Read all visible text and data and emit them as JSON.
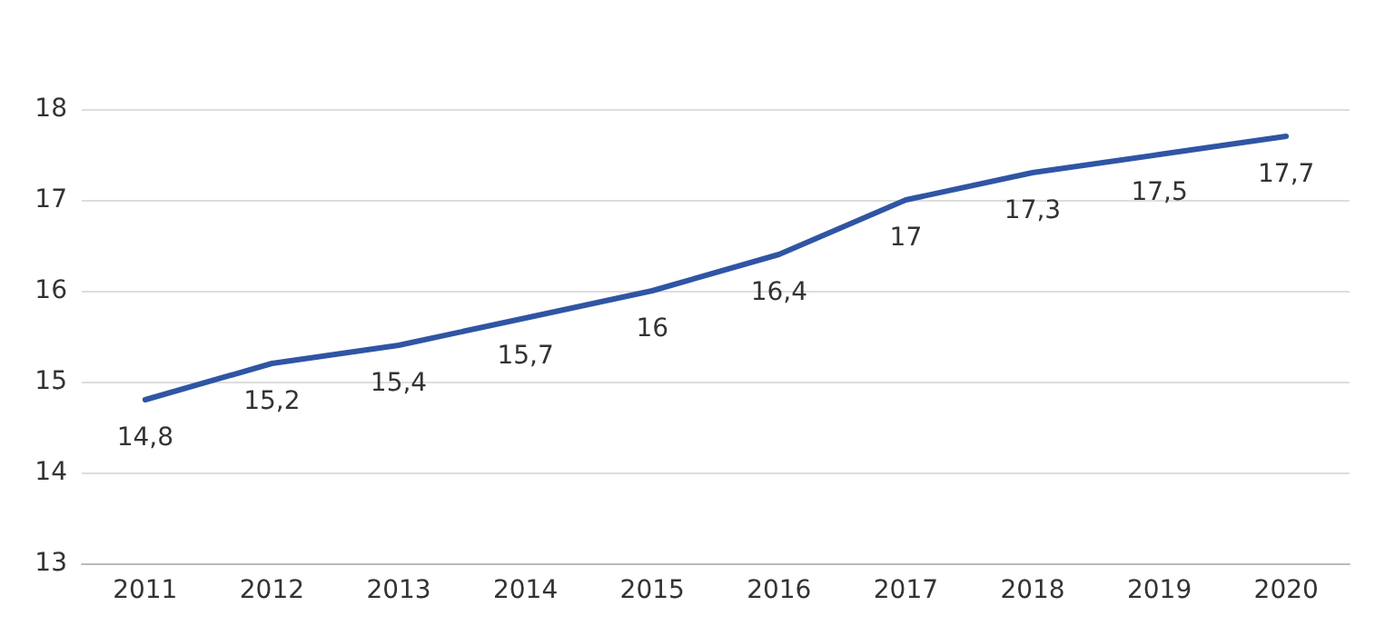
{
  "chart_data": {
    "type": "line",
    "categories": [
      "2011",
      "2012",
      "2013",
      "2014",
      "2015",
      "2016",
      "2017",
      "2018",
      "2019",
      "2020"
    ],
    "series": [
      {
        "color": "#2f55a4",
        "values": [
          14.8,
          15.2,
          15.4,
          15.7,
          16,
          16.4,
          17,
          17.3,
          17.5,
          17.7
        ],
        "value_labels": [
          "14,8",
          "15,2",
          "15,4",
          "15,7",
          "16",
          "16,4",
          "17",
          "17,3",
          "17,5",
          "17,7"
        ]
      }
    ],
    "ylim": [
      13,
      18
    ],
    "yticks": [
      13,
      14,
      15,
      16,
      17,
      18
    ],
    "grid": "y",
    "marker": "none",
    "line_style": "solid"
  }
}
